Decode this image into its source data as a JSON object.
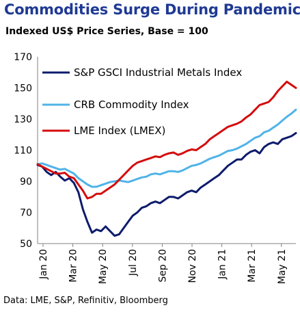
{
  "title": "Commodities Surge During Pandemic",
  "subtitle": "Indexed US$ Price Series, Base = 100",
  "source": "Data: LME, S&P, Refinitiv, Bloomberg",
  "chart_data": {
    "type": "line",
    "title": "Commodities Surge During Pandemic",
    "subtitle": "Indexed US$ Price Series, Base = 100",
    "xlabel": "",
    "ylabel": "",
    "ylim": [
      50,
      170
    ],
    "yticks": [
      50,
      70,
      90,
      110,
      130,
      150,
      170
    ],
    "xticks": [
      "Jan 20",
      "Mar 20",
      "May 20",
      "Jul 20",
      "Sep 20",
      "Nov 20",
      "Jan 21",
      "Mar 21",
      "May 21"
    ],
    "grid": false,
    "legend_position": "top-left",
    "series": [
      {
        "name": "S&P GSCI Industrial Metals Index",
        "color": "#0d1b6b",
        "values": [
          100.5,
          99.5,
          96,
          94,
          96,
          93,
          90.5,
          92,
          89,
          83,
          72,
          64,
          57,
          59,
          58,
          61,
          58,
          55,
          56,
          60,
          64,
          68,
          70,
          73,
          74,
          76,
          77,
          76,
          78,
          80,
          80,
          79,
          81,
          83,
          84,
          83,
          86,
          88,
          90,
          92,
          94,
          97,
          100,
          102,
          104,
          104,
          107,
          109,
          110,
          108,
          112,
          114,
          115,
          114,
          117,
          118,
          119,
          121
        ]
      },
      {
        "name": "CRB Commodity Index",
        "color": "#4fb3e8",
        "values": [
          101,
          101.5,
          100.5,
          99.5,
          98.5,
          97.5,
          98,
          96.5,
          95,
          92,
          90,
          88,
          86.5,
          86.5,
          87.5,
          88.5,
          89.5,
          90,
          90.5,
          90,
          89.5,
          90.5,
          91.5,
          92.5,
          93,
          94.5,
          95,
          94.5,
          95.5,
          96.5,
          96.5,
          96,
          97,
          98.5,
          100,
          100.5,
          101.5,
          103,
          104.5,
          105.5,
          106.5,
          108,
          109.5,
          110,
          111,
          112.5,
          114,
          116,
          118,
          119,
          121.5,
          122.5,
          124.5,
          126.5,
          129,
          131.5,
          133.5,
          136
        ]
      },
      {
        "name": "LME Index (LMEX)",
        "color": "#d40c0c",
        "values": [
          101,
          99.5,
          98,
          96.5,
          95,
          95,
          95.5,
          93,
          92,
          88,
          84,
          79,
          80,
          82,
          82,
          84,
          86,
          88,
          91,
          94,
          97,
          100,
          102,
          103,
          104,
          105,
          106,
          105.5,
          107,
          108,
          108.5,
          107,
          108,
          109.5,
          110.5,
          110,
          112,
          114,
          117,
          119,
          121,
          123,
          125,
          126,
          127,
          128.5,
          131,
          133,
          136,
          139,
          140,
          141,
          144,
          148,
          151,
          154,
          152,
          150
        ]
      }
    ]
  }
}
